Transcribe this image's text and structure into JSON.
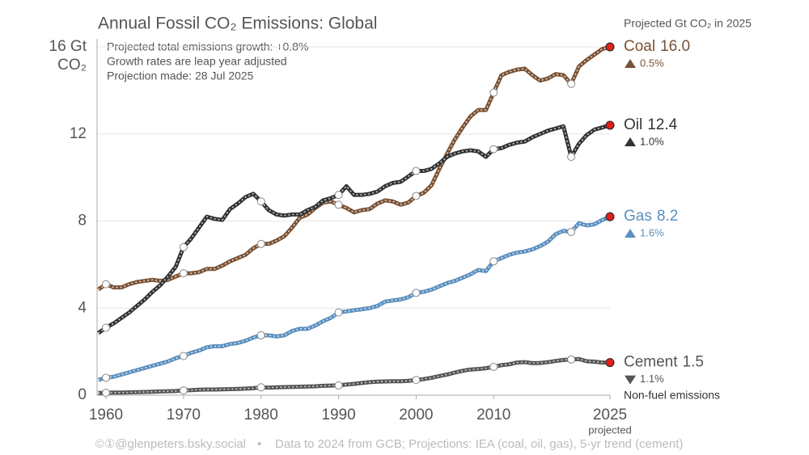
{
  "chart_data": {
    "type": "line",
    "title": "Annual Fossil CO₂ Emissions: Global",
    "annotations": [
      "Projected total emissions growth: +0.8%",
      "Growth rates are leap year adjusted",
      "Projection made: 28 Jul 2025"
    ],
    "legend_title": "Projected Gt CO₂ in 2025",
    "y_label": "CO₂",
    "x_note": "projected",
    "source_handle": "©①@glenpeters.bsky.social",
    "source_data": "Data to 2024 from GCB; Projections: IEA (coal, oil, gas), 5-yr trend (cement)",
    "grid": true,
    "xlim": [
      1959,
      2025
    ],
    "xticks": [
      1960,
      1970,
      1980,
      1990,
      2000,
      2010,
      2025
    ],
    "ylim": [
      0,
      16
    ],
    "yticks": [
      0,
      4,
      8,
      12,
      {
        "value": 16,
        "label": "16 Gt"
      }
    ],
    "x": [
      1959,
      1960,
      1961,
      1962,
      1963,
      1964,
      1965,
      1966,
      1967,
      1968,
      1969,
      1970,
      1971,
      1972,
      1973,
      1974,
      1975,
      1976,
      1977,
      1978,
      1979,
      1980,
      1981,
      1982,
      1983,
      1984,
      1985,
      1986,
      1987,
      1988,
      1989,
      1990,
      1991,
      1992,
      1993,
      1994,
      1995,
      1996,
      1997,
      1998,
      1999,
      2000,
      2001,
      2002,
      2003,
      2004,
      2005,
      2006,
      2007,
      2008,
      2009,
      2010,
      2011,
      2012,
      2013,
      2014,
      2015,
      2016,
      2017,
      2018,
      2019,
      2020,
      2021,
      2022,
      2023,
      2024,
      2025
    ],
    "series": [
      {
        "name": "Coal",
        "color": "#7a5234",
        "end_label": "16.0",
        "change": "0.5%",
        "change_direction": "up",
        "values": [
          4.85,
          5.1,
          4.95,
          4.95,
          5.1,
          5.2,
          5.25,
          5.3,
          5.25,
          5.3,
          5.45,
          5.6,
          5.6,
          5.65,
          5.8,
          5.8,
          5.95,
          6.15,
          6.3,
          6.45,
          6.75,
          6.95,
          6.95,
          7.1,
          7.3,
          7.7,
          8.15,
          8.3,
          8.6,
          8.85,
          8.9,
          8.75,
          8.6,
          8.4,
          8.5,
          8.55,
          8.8,
          8.95,
          8.9,
          8.75,
          8.85,
          9.15,
          9.3,
          9.65,
          10.4,
          11.1,
          11.75,
          12.3,
          12.8,
          13.1,
          13.1,
          13.9,
          14.7,
          14.85,
          14.95,
          15.0,
          14.7,
          14.45,
          14.55,
          14.75,
          14.7,
          14.3,
          15.1,
          15.4,
          15.65,
          15.9,
          16.0
        ]
      },
      {
        "name": "Oil",
        "color": "#333333",
        "end_label": "12.4",
        "change": "1.0%",
        "change_direction": "up",
        "values": [
          2.85,
          3.1,
          3.3,
          3.55,
          3.8,
          4.1,
          4.4,
          4.75,
          5.05,
          5.45,
          5.9,
          6.8,
          7.2,
          7.7,
          8.2,
          8.1,
          8.05,
          8.55,
          8.8,
          9.1,
          9.25,
          8.9,
          8.5,
          8.3,
          8.25,
          8.3,
          8.3,
          8.5,
          8.65,
          8.95,
          9.05,
          9.2,
          9.6,
          9.2,
          9.2,
          9.25,
          9.35,
          9.6,
          9.75,
          9.8,
          10.05,
          10.3,
          10.3,
          10.4,
          10.65,
          10.95,
          11.1,
          11.2,
          11.25,
          11.2,
          10.95,
          11.3,
          11.35,
          11.5,
          11.6,
          11.65,
          11.85,
          12.0,
          12.15,
          12.25,
          12.35,
          10.95,
          11.55,
          11.95,
          12.2,
          12.3,
          12.4
        ]
      },
      {
        "name": "Gas",
        "color": "#5b8fbf",
        "end_label": "8.2",
        "change": "1.6%",
        "change_direction": "up",
        "values": [
          0.7,
          0.8,
          0.85,
          0.95,
          1.05,
          1.15,
          1.25,
          1.35,
          1.45,
          1.55,
          1.7,
          1.8,
          1.95,
          2.05,
          2.2,
          2.25,
          2.25,
          2.35,
          2.4,
          2.5,
          2.65,
          2.75,
          2.75,
          2.7,
          2.75,
          2.95,
          3.05,
          3.05,
          3.2,
          3.4,
          3.55,
          3.8,
          3.85,
          3.9,
          3.95,
          4.0,
          4.1,
          4.3,
          4.35,
          4.4,
          4.5,
          4.7,
          4.75,
          4.85,
          5.0,
          5.15,
          5.25,
          5.4,
          5.55,
          5.75,
          5.7,
          6.15,
          6.3,
          6.45,
          6.55,
          6.6,
          6.7,
          6.85,
          7.05,
          7.4,
          7.55,
          7.5,
          7.9,
          7.8,
          7.85,
          8.05,
          8.2
        ]
      },
      {
        "name": "Cement",
        "color": "#555555",
        "end_label": "1.5",
        "change": "1.1%",
        "change_direction": "down",
        "note": "Non-fuel emissions",
        "values": [
          0.1,
          0.11,
          0.12,
          0.12,
          0.13,
          0.14,
          0.15,
          0.16,
          0.17,
          0.18,
          0.19,
          0.22,
          0.23,
          0.25,
          0.26,
          0.26,
          0.27,
          0.28,
          0.29,
          0.3,
          0.32,
          0.36,
          0.35,
          0.36,
          0.37,
          0.38,
          0.39,
          0.4,
          0.41,
          0.43,
          0.44,
          0.45,
          0.49,
          0.52,
          0.56,
          0.6,
          0.62,
          0.63,
          0.64,
          0.64,
          0.66,
          0.7,
          0.74,
          0.8,
          0.88,
          0.95,
          1.04,
          1.12,
          1.18,
          1.2,
          1.24,
          1.3,
          1.38,
          1.42,
          1.5,
          1.52,
          1.47,
          1.48,
          1.52,
          1.57,
          1.62,
          1.64,
          1.66,
          1.56,
          1.54,
          1.5,
          1.5
        ]
      }
    ]
  }
}
